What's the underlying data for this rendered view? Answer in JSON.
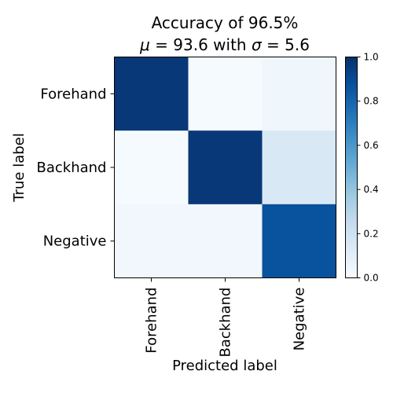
{
  "chart_data": {
    "type": "heatmap",
    "title_line1": "Accuracy of 96.5%",
    "title_mu_symbol": "μ",
    "title_mu_text": " = 93.6 with ",
    "title_sigma_symbol": "σ",
    "title_sigma_text": " = 5.6",
    "xlabel": "Predicted label",
    "ylabel": "True label",
    "x_categories": [
      "Forehand",
      "Backhand",
      "Negative"
    ],
    "y_categories": [
      "Forehand",
      "Backhand",
      "Negative"
    ],
    "values": [
      [
        0.97,
        0.01,
        0.04
      ],
      [
        0.01,
        0.97,
        0.15
      ],
      [
        0.03,
        0.03,
        0.87
      ]
    ],
    "vmin": 0.0,
    "vmax": 1.0,
    "colormap": "Blues",
    "colorbar_ticks": [
      "0.0",
      "0.2",
      "0.4",
      "0.6",
      "0.8",
      "1.0"
    ],
    "grid": false
  }
}
